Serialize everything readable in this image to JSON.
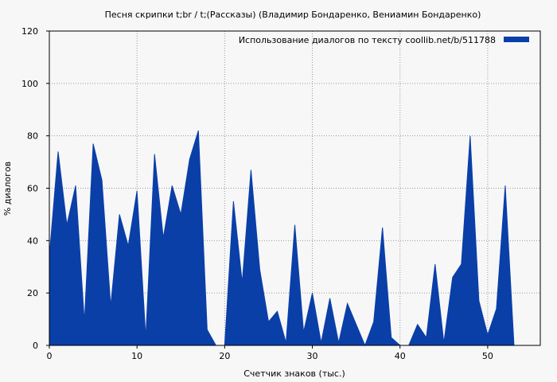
{
  "chart_data": {
    "type": "area",
    "title": "Песня скрипки  t;br /   t;(Рассказы) (Владимир Бондаренко, Вениамин Бондаренко)",
    "xlabel": "Счетчик знаков (тыс.)",
    "ylabel": "% диалогов",
    "xlim": [
      0,
      56
    ],
    "ylim": [
      0,
      120
    ],
    "xticks": [
      0,
      10,
      20,
      30,
      40,
      50
    ],
    "yticks": [
      0,
      20,
      40,
      60,
      80,
      100,
      120
    ],
    "grid": true,
    "legend_position": "top-right",
    "series": [
      {
        "name": "Использование диалогов по тексту  coollib.net/b/511788",
        "color": "#0a3fa8",
        "x": [
          0,
          1,
          2,
          3,
          4,
          5,
          6,
          7,
          8,
          9,
          10,
          11,
          12,
          13,
          14,
          15,
          16,
          17,
          18,
          19,
          20,
          21,
          22,
          23,
          24,
          25,
          26,
          27,
          28,
          29,
          30,
          31,
          32,
          33,
          34,
          35,
          36,
          37,
          38,
          39,
          40,
          41,
          42,
          43,
          44,
          45,
          46,
          47,
          48,
          49,
          50,
          51,
          52,
          53
        ],
        "values": [
          34,
          74,
          46,
          61,
          9,
          77,
          63,
          15,
          50,
          38,
          59,
          3,
          73,
          41,
          61,
          50,
          71,
          82,
          6,
          0,
          0,
          55,
          24,
          67,
          29,
          9,
          13,
          1,
          46,
          5,
          20,
          1,
          18,
          1,
          16,
          8,
          0,
          9,
          45,
          3,
          0,
          0,
          8,
          3,
          31,
          1,
          26,
          31,
          80,
          17,
          4,
          14,
          61,
          0
        ]
      }
    ]
  }
}
